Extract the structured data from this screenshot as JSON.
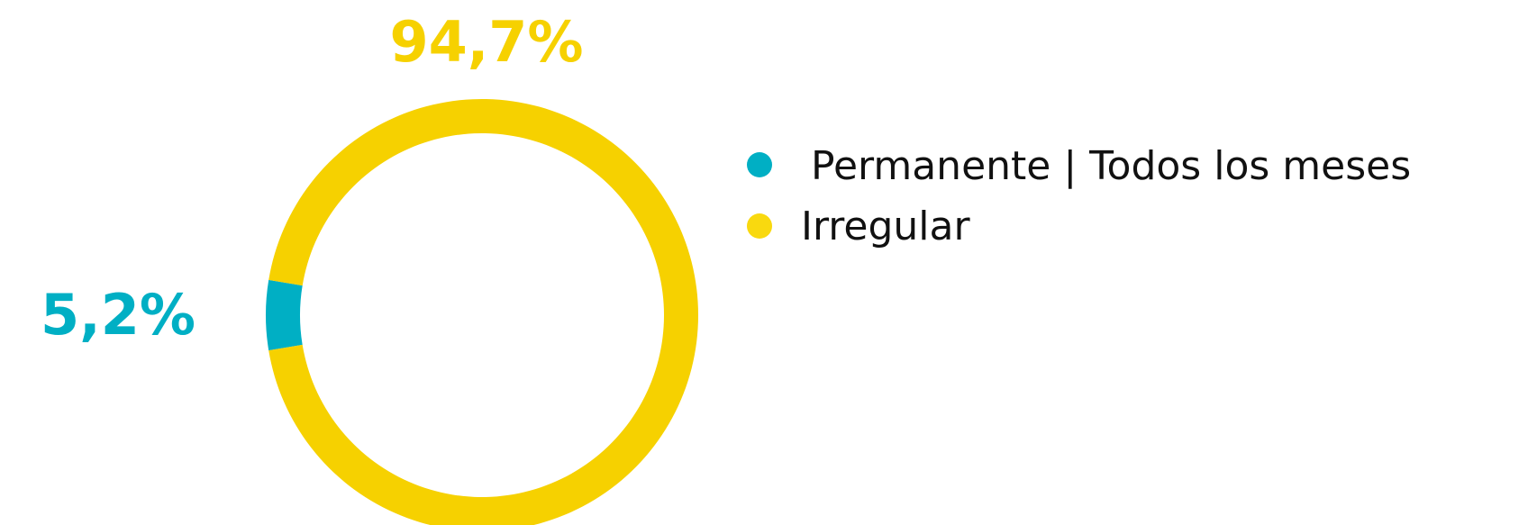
{
  "chart_data": {
    "type": "pie",
    "donut": true,
    "slices": [
      {
        "label": "Permanente | Todos los meses",
        "value": 5.2,
        "display": "5,2%",
        "color": "#00afc4"
      },
      {
        "label": "Irregular",
        "value": 94.7,
        "display": "94,7%",
        "color": "#f6d100"
      }
    ],
    "legend": {
      "position": "right",
      "items": [
        {
          "label": "Permanente | Todos los meses",
          "color": "#00afc4"
        },
        {
          "label": "Irregular",
          "color": "#f9d90f"
        }
      ]
    }
  }
}
